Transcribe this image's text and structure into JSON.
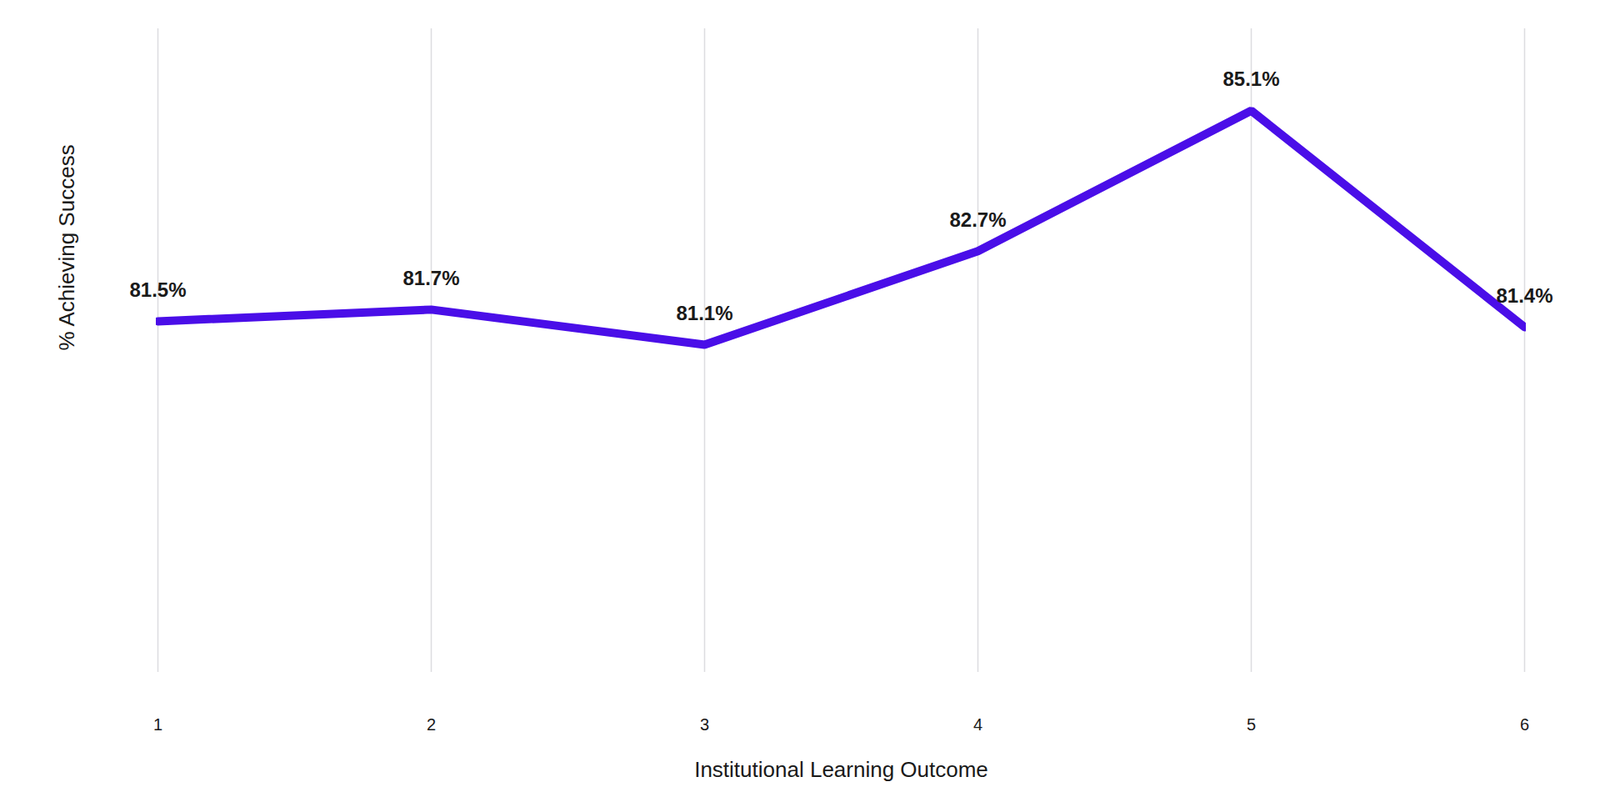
{
  "chart_data": {
    "type": "line",
    "x_label": "Institutional Learning Outcome",
    "y_label": "% Achieving Success",
    "categories": [
      "1",
      "2",
      "3",
      "4",
      "5",
      "6"
    ],
    "values": [
      81.5,
      81.7,
      81.1,
      82.7,
      85.1,
      81.4
    ],
    "value_labels": [
      "81.5%",
      "81.7%",
      "81.1%",
      "82.7%",
      "85.1%",
      "81.4%"
    ],
    "color": "#4a0ee8",
    "ylim": [
      75.5,
      86.5
    ],
    "yticks": [],
    "grid": true,
    "data_labels": true,
    "tick_labels": "x"
  }
}
